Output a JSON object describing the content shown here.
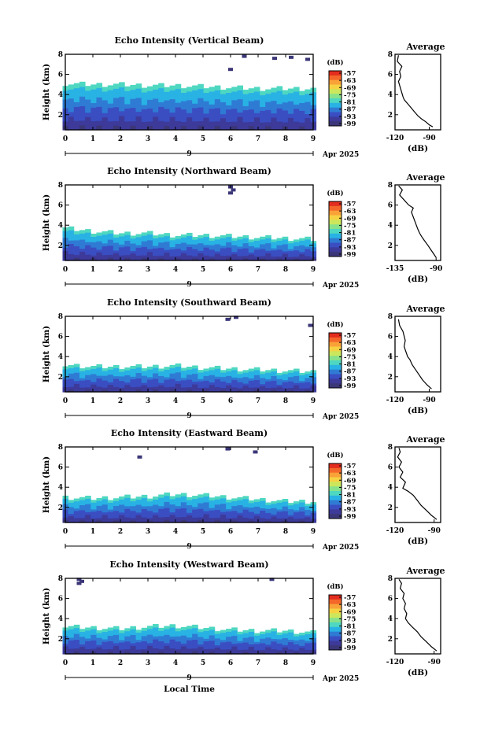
{
  "figure": {
    "xlabel": "Local Time",
    "date_label": "Apr 2025",
    "date_marker": "9"
  },
  "colorbar": {
    "unit": "(dB)",
    "ticks": [
      "-57",
      "-63",
      "-69",
      "-75",
      "-81",
      "-87",
      "-93",
      "-99"
    ],
    "colors": [
      "#e32d1e",
      "#f4672a",
      "#f9a238",
      "#f6d243",
      "#cde75c",
      "#87e28b",
      "#4ed7c1",
      "#29b2e4",
      "#2f7bd4",
      "#3a4ec2",
      "#3d3a9a",
      "#3b3677"
    ]
  },
  "chart_data": [
    {
      "type": "heatmap",
      "title": "Echo Intensity (Vertical Beam)",
      "ylabel": "Height (km)",
      "xlim": [
        0,
        9
      ],
      "ylim": [
        0.5,
        8
      ],
      "x_ticks": [
        "0",
        "1",
        "2",
        "3",
        "4",
        "5",
        "6",
        "7",
        "8",
        "9"
      ],
      "y_ticks": [
        "2",
        "4",
        "6",
        "8"
      ],
      "echo_top_km": [
        5.1,
        5.0,
        5.0,
        4.9,
        4.9,
        4.8,
        4.7,
        4.6,
        4.6,
        4.6
      ],
      "speckles": [
        [
          7.6,
          7.6
        ],
        [
          8.2,
          7.7
        ],
        [
          6.0,
          6.5
        ],
        [
          6.5,
          7.8
        ],
        [
          8.8,
          7.5
        ]
      ],
      "profile": {
        "title": "Average",
        "xlabel": "(dB)",
        "x_ticks": [
          "-120",
          "-90"
        ],
        "xlim": [
          -120,
          -80
        ],
        "y_ticks": [
          "2",
          "4",
          "6",
          "8"
        ],
        "values": [
          [
            -87,
            0.8
          ],
          [
            -90,
            1.0
          ],
          [
            -93,
            1.3
          ],
          [
            -97,
            1.6
          ],
          [
            -100,
            1.9
          ],
          [
            -103,
            2.3
          ],
          [
            -106,
            2.7
          ],
          [
            -109,
            3.1
          ],
          [
            -112,
            3.5
          ],
          [
            -113,
            3.8
          ],
          [
            -117,
            5.3
          ],
          [
            -115,
            5.8
          ],
          [
            -116,
            6.3
          ],
          [
            -114,
            6.8
          ],
          [
            -118,
            7.3
          ],
          [
            -117,
            7.9
          ]
        ]
      }
    },
    {
      "type": "heatmap",
      "title": "Echo Intensity (Northward Beam)",
      "ylabel": "Height (km)",
      "xlim": [
        0,
        9
      ],
      "ylim": [
        0.5,
        8
      ],
      "x_ticks": [
        "0",
        "1",
        "2",
        "3",
        "4",
        "5",
        "6",
        "7",
        "8",
        "9"
      ],
      "y_ticks": [
        "2",
        "4",
        "6",
        "8"
      ],
      "echo_top_km": [
        3.7,
        3.4,
        3.2,
        3.2,
        3.0,
        3.0,
        2.9,
        2.8,
        2.7,
        2.6
      ],
      "speckles": [
        [
          6.0,
          7.8
        ],
        [
          6.0,
          7.2
        ],
        [
          6.1,
          7.5
        ]
      ],
      "profile": {
        "title": "Average",
        "xlabel": "(dB)",
        "x_ticks": [
          "-135",
          "-90"
        ],
        "xlim": [
          -135,
          -85
        ],
        "y_ticks": [
          "2",
          "4",
          "6",
          "8"
        ],
        "values": [
          [
            -90,
            0.8
          ],
          [
            -93,
            1.2
          ],
          [
            -96,
            1.6
          ],
          [
            -99,
            2.0
          ],
          [
            -103,
            2.5
          ],
          [
            -106,
            2.9
          ],
          [
            -108,
            3.2
          ],
          [
            -110,
            3.6
          ],
          [
            -117,
            5.3
          ],
          [
            -115,
            5.7
          ],
          [
            -120,
            6.0
          ],
          [
            -125,
            6.5
          ],
          [
            -130,
            7.0
          ],
          [
            -127,
            7.5
          ],
          [
            -131,
            7.9
          ]
        ]
      }
    },
    {
      "type": "heatmap",
      "title": "Echo Intensity (Southward Beam)",
      "ylabel": "Height (km)",
      "xlim": [
        0,
        9
      ],
      "ylim": [
        0.5,
        8
      ],
      "x_ticks": [
        "0",
        "1",
        "2",
        "3",
        "4",
        "5",
        "6",
        "7",
        "8",
        "9"
      ],
      "y_ticks": [
        "2",
        "4",
        "6",
        "8"
      ],
      "echo_top_km": [
        3.2,
        3.0,
        3.0,
        3.0,
        3.1,
        2.9,
        2.8,
        2.7,
        2.6,
        2.5
      ],
      "speckles": [
        [
          5.9,
          7.7
        ],
        [
          6.2,
          7.9
        ],
        [
          8.9,
          7.1
        ]
      ],
      "profile": {
        "title": "Average",
        "xlabel": "(dB)",
        "x_ticks": [
          "-120",
          "-90"
        ],
        "xlim": [
          -120,
          -80
        ],
        "y_ticks": [
          "2",
          "4",
          "6",
          "8"
        ],
        "values": [
          [
            -88,
            0.8
          ],
          [
            -92,
            1.2
          ],
          [
            -96,
            1.7
          ],
          [
            -99,
            2.2
          ],
          [
            -102,
            2.7
          ],
          [
            -105,
            3.2
          ],
          [
            -107,
            3.7
          ],
          [
            -109,
            4.0
          ],
          [
            -112,
            5.0
          ],
          [
            -111,
            5.6
          ],
          [
            -113,
            6.5
          ],
          [
            -116,
            7.1
          ],
          [
            -117,
            7.7
          ]
        ]
      }
    },
    {
      "type": "heatmap",
      "title": "Echo Intensity (Eastward Beam)",
      "ylabel": "Height (km)",
      "xlim": [
        0,
        9
      ],
      "ylim": [
        0.5,
        8
      ],
      "x_ticks": [
        "0",
        "1",
        "2",
        "3",
        "4",
        "5",
        "6",
        "7",
        "8",
        "9"
      ],
      "y_ticks": [
        "2",
        "4",
        "6",
        "8"
      ],
      "echo_top_km": [
        3.0,
        2.9,
        3.0,
        3.1,
        3.3,
        3.2,
        3.0,
        2.8,
        2.6,
        2.6
      ],
      "speckles": [
        [
          2.7,
          7.0
        ],
        [
          5.9,
          7.8
        ],
        [
          6.9,
          7.5
        ]
      ],
      "profile": {
        "title": "Average",
        "xlabel": "(dB)",
        "x_ticks": [
          "-120",
          "-90"
        ],
        "xlim": [
          -120,
          -85
        ],
        "y_ticks": [
          "2",
          "4",
          "6",
          "8"
        ],
        "values": [
          [
            -88,
            0.8
          ],
          [
            -92,
            1.2
          ],
          [
            -96,
            1.7
          ],
          [
            -100,
            2.2
          ],
          [
            -103,
            2.7
          ],
          [
            -106,
            3.2
          ],
          [
            -110,
            3.6
          ],
          [
            -114,
            3.9
          ],
          [
            -112,
            4.5
          ],
          [
            -116,
            5.0
          ],
          [
            -114,
            5.5
          ],
          [
            -117,
            6.0
          ],
          [
            -115,
            6.5
          ],
          [
            -118,
            7.0
          ],
          [
            -116,
            7.5
          ],
          [
            -117,
            7.9
          ]
        ]
      }
    },
    {
      "type": "heatmap",
      "title": "Echo Intensity (Westward Beam)",
      "ylabel": "Height (km)",
      "xlim": [
        0,
        9
      ],
      "ylim": [
        0.5,
        8
      ],
      "x_ticks": [
        "0",
        "1",
        "2",
        "3",
        "4",
        "5",
        "6",
        "7",
        "8",
        "9"
      ],
      "y_ticks": [
        "2",
        "4",
        "6",
        "8"
      ],
      "echo_top_km": [
        3.2,
        3.1,
        3.0,
        3.2,
        3.3,
        3.1,
        2.9,
        2.8,
        2.8,
        2.6
      ],
      "speckles": [
        [
          0.5,
          7.5
        ],
        [
          0.5,
          7.9
        ],
        [
          0.6,
          7.7
        ],
        [
          7.5,
          7.9
        ]
      ],
      "profile": {
        "title": "Average",
        "xlabel": "(dB)",
        "x_ticks": [
          "-120",
          "-90"
        ],
        "xlim": [
          -120,
          -85
        ],
        "y_ticks": [
          "2",
          "4",
          "6",
          "8"
        ],
        "values": [
          [
            -88,
            0.8
          ],
          [
            -92,
            1.2
          ],
          [
            -96,
            1.7
          ],
          [
            -100,
            2.2
          ],
          [
            -103,
            2.7
          ],
          [
            -107,
            3.2
          ],
          [
            -110,
            3.6
          ],
          [
            -112,
            4.0
          ],
          [
            -111,
            4.5
          ],
          [
            -113,
            5.0
          ],
          [
            -112,
            5.5
          ],
          [
            -114,
            6.0
          ],
          [
            -113,
            6.5
          ],
          [
            -116,
            7.0
          ],
          [
            -115,
            7.5
          ],
          [
            -117,
            7.9
          ]
        ]
      }
    }
  ]
}
